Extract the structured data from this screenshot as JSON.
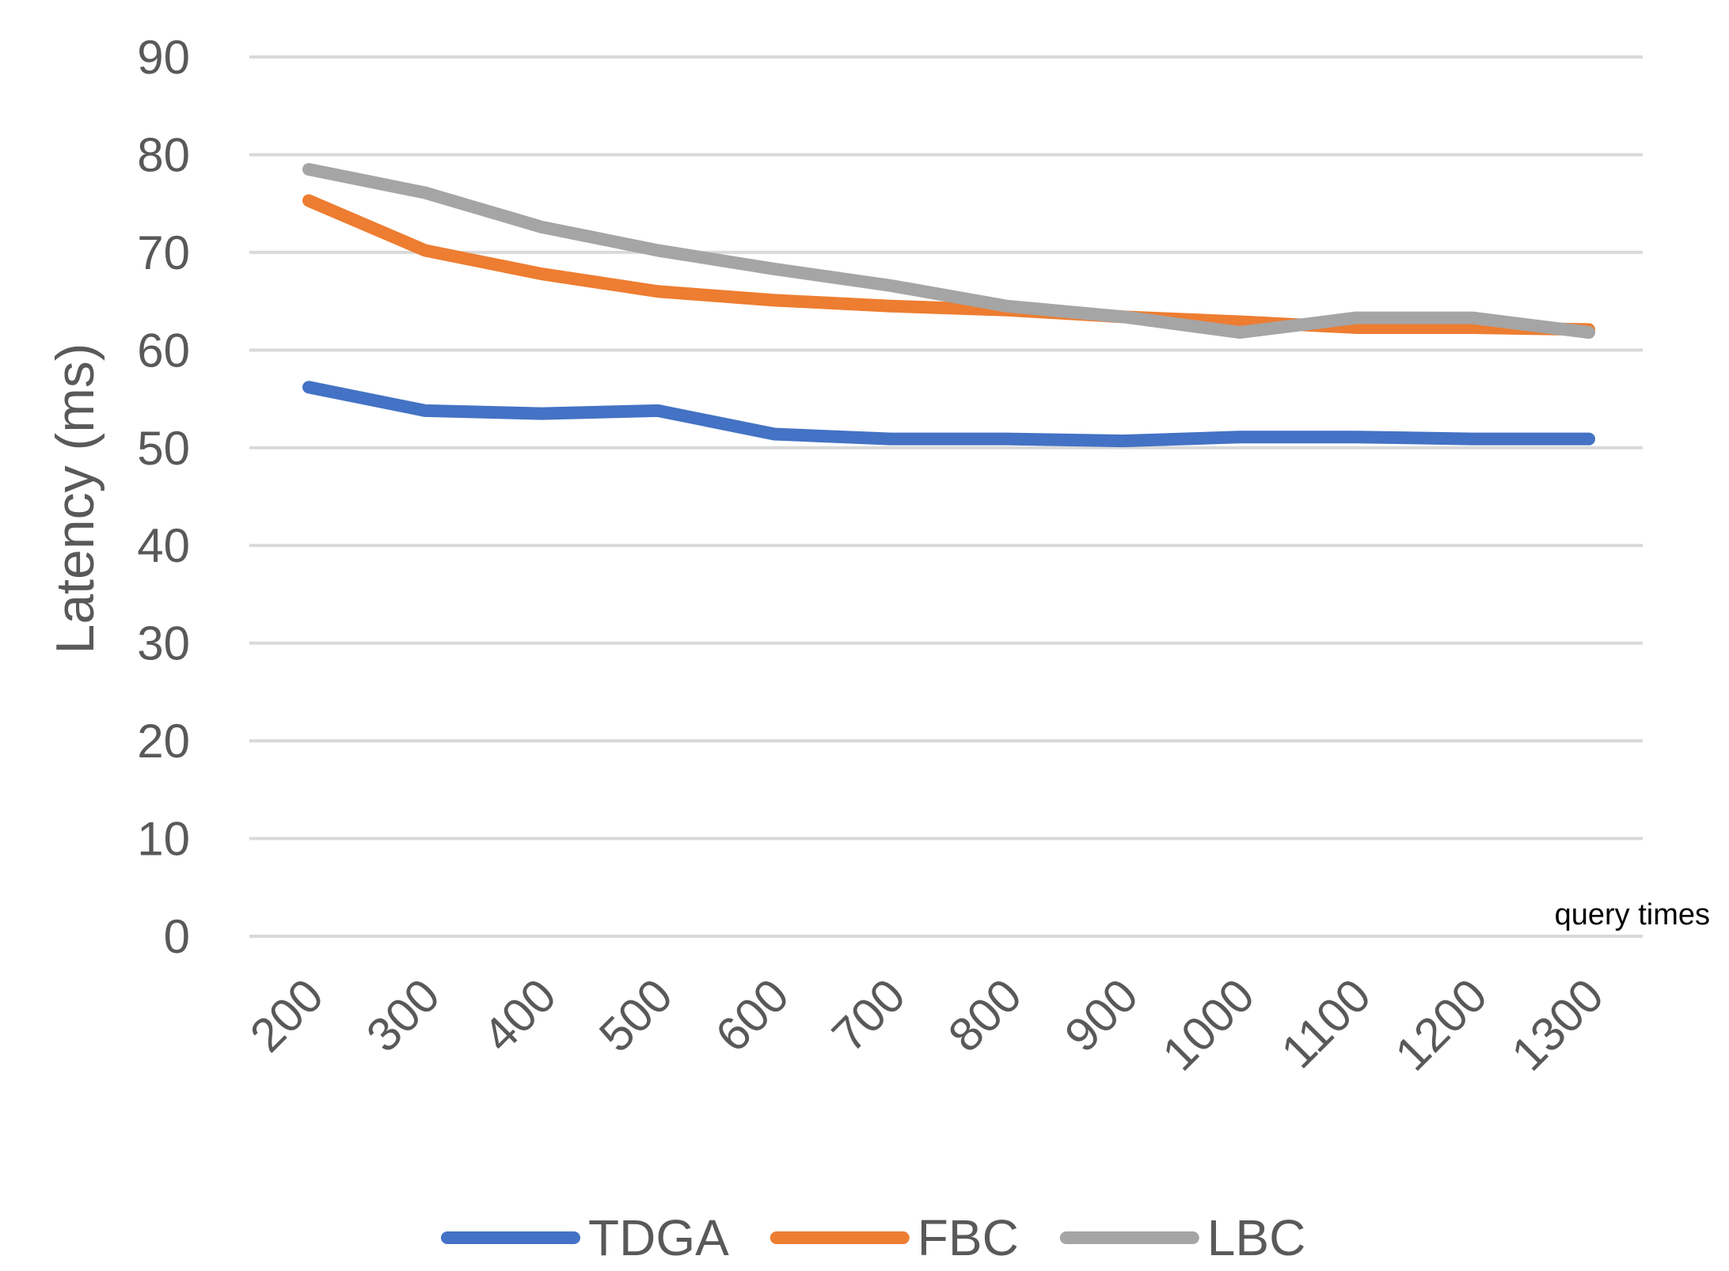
{
  "chart_data": {
    "type": "line",
    "title": "",
    "xlabel": "query times",
    "ylabel": "Latency (ms)",
    "categories": [
      "200",
      "300",
      "400",
      "500",
      "600",
      "700",
      "800",
      "900",
      "1000",
      "1100",
      "1200",
      "1300"
    ],
    "ylim": [
      0,
      90
    ],
    "yticks": [
      0,
      10,
      20,
      30,
      40,
      50,
      60,
      70,
      80,
      90
    ],
    "grid": true,
    "legend_position": "bottom",
    "series": [
      {
        "name": "TDGA",
        "color": "#4472c4",
        "values": [
          56.2,
          53.8,
          53.5,
          53.8,
          51.4,
          50.9,
          50.9,
          50.7,
          51.1,
          51.1,
          50.9,
          50.9
        ]
      },
      {
        "name": "FBC",
        "color": "#ed7d31",
        "values": [
          75.3,
          70.2,
          67.8,
          66.0,
          65.1,
          64.5,
          64.1,
          63.4,
          62.9,
          62.3,
          62.3,
          62.1
        ]
      },
      {
        "name": "LBC",
        "color": "#a5a5a5",
        "values": [
          78.5,
          76.1,
          72.6,
          70.2,
          68.3,
          66.6,
          64.5,
          63.4,
          61.8,
          63.3,
          63.3,
          61.8
        ]
      }
    ]
  }
}
